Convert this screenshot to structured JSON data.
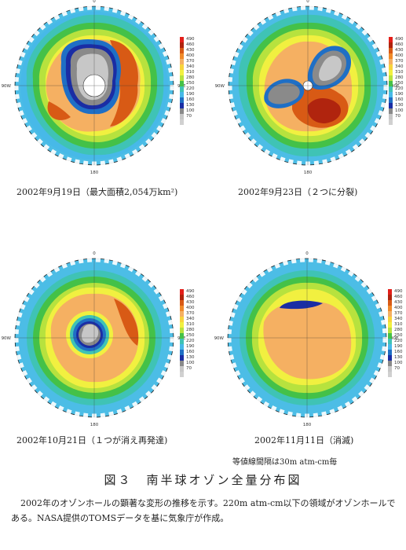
{
  "palette": [
    "#e31f1a",
    "#b0240e",
    "#d85a15",
    "#f08a2a",
    "#f5b062",
    "#f8d43c",
    "#f1f040",
    "#b7e23e",
    "#44c148",
    "#3fc3b5",
    "#47b9e8",
    "#1f6fc5",
    "#1a2da4",
    "#8a8a8a",
    "#c7c7c7",
    "#d0d0d0"
  ],
  "colorbar_ticks": [
    "490",
    "460",
    "430",
    "400",
    "370",
    "340",
    "310",
    "280",
    "250",
    "220",
    "190",
    "160",
    "130",
    "100",
    "70"
  ],
  "panels": [
    {
      "caption": "2002年9月19日（最大面積2,054万km²)",
      "labels": {
        "top": "0",
        "left": "90W",
        "right": "90E",
        "bottom": "180"
      }
    },
    {
      "caption": "2002年9月23日（２つに分裂)",
      "labels": {
        "top": "0",
        "left": "90W",
        "right": "90E",
        "bottom": "180"
      }
    },
    {
      "caption": "2002年10月21日（１つが消え再発達)",
      "labels": {
        "top": "0",
        "left": "90W",
        "right": "90E",
        "bottom": "180"
      }
    },
    {
      "caption": "2002年11月11日（消滅)",
      "labels": {
        "top": "0",
        "left": "90W",
        "right": "90E",
        "bottom": "180"
      }
    }
  ],
  "contour_note": "等値線間隔は30m atm-cm毎",
  "figure_title": "図３　南半球オゾン全量分布図",
  "body": "2002年のオゾンホールの顕著な変形の推移を示す。220m atm-cm以下の領域がオゾンホールである。NASA提供のTOMSデータを基に気象庁が作成。"
}
